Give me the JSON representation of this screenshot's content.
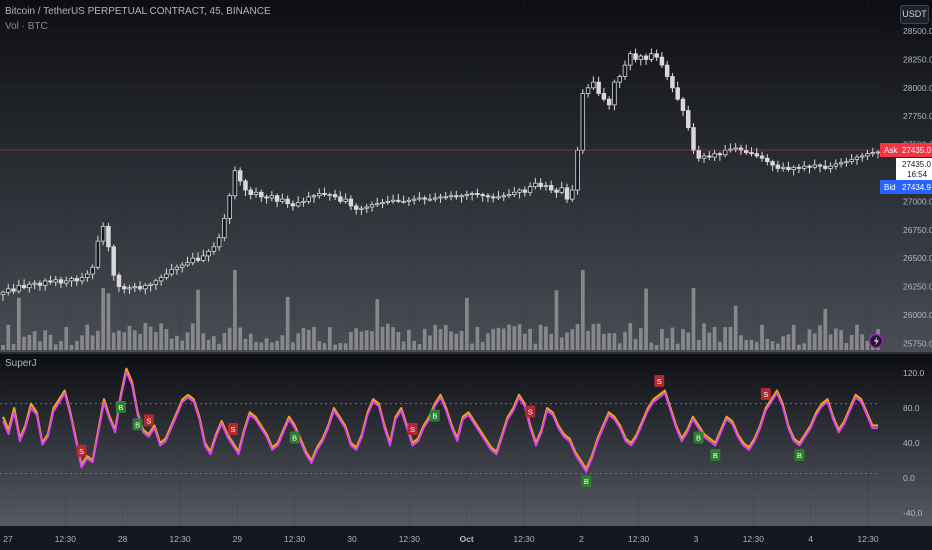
{
  "header": {
    "title": "Bitcoin / TetherUS PERPETUAL CONTRACT, 45, BINANCE",
    "volume_label": "Vol · BTC",
    "currency_button": "USDT",
    "oscillator_label": "SuperJ"
  },
  "price_scale": {
    "ticks": [
      "28500.0",
      "28250.0",
      "28000.0",
      "27750.0",
      "27500.0",
      "27250.0",
      "27000.0",
      "26750.0",
      "26500.0",
      "26250.0",
      "26000.0",
      "25750.0"
    ],
    "ask": {
      "label": "Ask",
      "value": "27435.0",
      "color": "#f23645"
    },
    "last": {
      "value": "27435.0",
      "countdown": "16:54"
    },
    "bid": {
      "label": "Bid",
      "value": "27434.9",
      "color": "#2962ff"
    }
  },
  "oscillator_scale": {
    "ticks": [
      "120.0",
      "80.0",
      "40.0",
      "0.0",
      "-40.0"
    ]
  },
  "time_axis": {
    "labels": [
      "27",
      "12:30",
      "28",
      "12:30",
      "29",
      "12:30",
      "30",
      "12:30",
      "Oct",
      "12:30",
      "2",
      "12:30",
      "3",
      "12:30",
      "4",
      "12:30"
    ]
  },
  "chart_data": [
    {
      "type": "candlestick",
      "title": "Bitcoin / TetherUS PERPETUAL CONTRACT, 45, BINANCE",
      "ylim": [
        25700,
        28650
      ],
      "close": [
        26200,
        26230,
        26210,
        26260,
        26240,
        26270,
        26280,
        26260,
        26300,
        26290,
        26310,
        26280,
        26300,
        26320,
        26300,
        26330,
        26360,
        26420,
        26650,
        26780,
        26600,
        26350,
        26250,
        26230,
        26240,
        26250,
        26230,
        26260,
        26270,
        26300,
        26330,
        26360,
        26400,
        26420,
        26440,
        26460,
        26500,
        26480,
        26520,
        26560,
        26600,
        26680,
        26850,
        27050,
        27270,
        27180,
        27100,
        27060,
        27080,
        27040,
        27030,
        27050,
        27000,
        27020,
        26980,
        26960,
        26990,
        27000,
        27040,
        27050,
        27070,
        27060,
        27060,
        27040,
        27000,
        27020,
        26960,
        26930,
        26940,
        26950,
        26970,
        26980,
        26990,
        27000,
        27010,
        27000,
        27000,
        27010,
        27020,
        27030,
        27020,
        27020,
        27030,
        27040,
        27040,
        27050,
        27040,
        27050,
        27060,
        27070,
        27060,
        27050,
        27040,
        27030,
        27040,
        27050,
        27060,
        27080,
        27100,
        27080,
        27130,
        27160,
        27130,
        27140,
        27100,
        27080,
        27120,
        27020,
        27100,
        27450,
        27950,
        28000,
        28050,
        27950,
        27900,
        27850,
        28050,
        28100,
        28200,
        28300,
        28250,
        28280,
        28250,
        28300,
        28270,
        28200,
        28100,
        28000,
        27900,
        27800,
        27650,
        27450,
        27380,
        27400,
        27390,
        27420,
        27410,
        27450,
        27460,
        27470,
        27450,
        27430,
        27420,
        27400,
        27380,
        27350,
        27320,
        27290,
        27300,
        27280,
        27300,
        27290,
        27310,
        27300,
        27320,
        27310,
        27290,
        27310,
        27330,
        27340,
        27350,
        27370,
        27390,
        27400,
        27420,
        27430,
        27435
      ],
      "volume_max": 100
    },
    {
      "type": "line",
      "name_label": "SuperJ",
      "ylim": [
        -55,
        135
      ],
      "reference_lines": [
        85,
        5
      ],
      "series": [
        {
          "color": "#e6a817",
          "values": [
            70,
            55,
            80,
            45,
            60,
            85,
            75,
            40,
            50,
            80,
            90,
            100,
            75,
            45,
            15,
            25,
            20,
            55,
            90,
            70,
            55,
            95,
            125,
            110,
            75,
            55,
            50,
            60,
            40,
            45,
            60,
            75,
            90,
            95,
            90,
            70,
            40,
            30,
            50,
            65,
            50,
            40,
            30,
            55,
            75,
            70,
            60,
            50,
            35,
            40,
            55,
            70,
            60,
            45,
            30,
            20,
            35,
            45,
            60,
            80,
            70,
            60,
            40,
            35,
            50,
            75,
            90,
            85,
            60,
            40,
            70,
            80,
            60,
            40,
            45,
            60,
            70,
            85,
            95,
            80,
            60,
            45,
            70,
            75,
            65,
            55,
            45,
            35,
            30,
            50,
            70,
            80,
            95,
            85,
            60,
            40,
            55,
            80,
            75,
            60,
            50,
            45,
            30,
            20,
            10,
            25,
            45,
            60,
            75,
            70,
            60,
            45,
            40,
            50,
            65,
            80,
            90,
            95,
            100,
            80,
            60,
            45,
            55,
            70,
            60,
            50,
            45,
            40,
            55,
            70,
            65,
            50,
            40,
            35,
            45,
            60,
            80,
            90,
            100,
            85,
            60,
            45,
            40,
            50,
            60,
            75,
            85,
            90,
            70,
            55,
            65,
            80,
            95,
            90,
            75,
            60,
            60
          ]
        },
        {
          "color": "#e040fb",
          "values": [
            65,
            50,
            75,
            42,
            57,
            80,
            72,
            38,
            47,
            76,
            86,
            97,
            72,
            42,
            12,
            22,
            18,
            52,
            86,
            67,
            52,
            91,
            121,
            106,
            72,
            52,
            47,
            57,
            37,
            42,
            57,
            72,
            87,
            92,
            87,
            67,
            37,
            27,
            47,
            62,
            47,
            37,
            27,
            52,
            72,
            67,
            57,
            47,
            32,
            37,
            52,
            67,
            57,
            42,
            27,
            17,
            32,
            42,
            57,
            77,
            67,
            57,
            37,
            32,
            47,
            72,
            87,
            82,
            57,
            37,
            67,
            77,
            57,
            37,
            42,
            57,
            67,
            82,
            92,
            77,
            57,
            42,
            67,
            72,
            62,
            52,
            42,
            32,
            27,
            47,
            67,
            77,
            92,
            82,
            57,
            37,
            52,
            77,
            72,
            57,
            47,
            42,
            27,
            17,
            7,
            22,
            42,
            57,
            72,
            67,
            57,
            42,
            37,
            47,
            62,
            77,
            87,
            92,
            97,
            77,
            57,
            42,
            52,
            67,
            57,
            47,
            42,
            37,
            52,
            67,
            62,
            47,
            37,
            32,
            42,
            57,
            77,
            87,
            97,
            82,
            57,
            42,
            37,
            47,
            57,
            72,
            82,
            87,
            67,
            52,
            62,
            77,
            92,
            87,
            72,
            57,
            57
          ]
        }
      ],
      "signals": [
        {
          "label": "S",
          "kind": "sell",
          "index": 14
        },
        {
          "label": "B",
          "kind": "buy",
          "index": 21
        },
        {
          "label": "B",
          "kind": "buy",
          "index": 24
        },
        {
          "label": "S",
          "kind": "sell",
          "index": 26
        },
        {
          "label": "S",
          "kind": "sell",
          "index": 41
        },
        {
          "label": "B",
          "kind": "buy",
          "index": 52
        },
        {
          "label": "S",
          "kind": "sell",
          "index": 73
        },
        {
          "label": "B",
          "kind": "buy",
          "index": 77
        },
        {
          "label": "S",
          "kind": "sell",
          "index": 94
        },
        {
          "label": "B",
          "kind": "buy",
          "index": 104
        },
        {
          "label": "S",
          "kind": "sell",
          "index": 117
        },
        {
          "label": "B",
          "kind": "buy",
          "index": 124
        },
        {
          "label": "B",
          "kind": "buy",
          "index": 127
        },
        {
          "label": "S",
          "kind": "sell",
          "index": 136
        },
        {
          "label": "B",
          "kind": "buy",
          "index": 142
        }
      ]
    }
  ],
  "colors": {
    "background": "#131722",
    "candle": "#d9d9d9",
    "volume": "#9e9e9e",
    "grid": "#2a2e39",
    "sell": "#b22833",
    "buy": "#2e7d32"
  }
}
